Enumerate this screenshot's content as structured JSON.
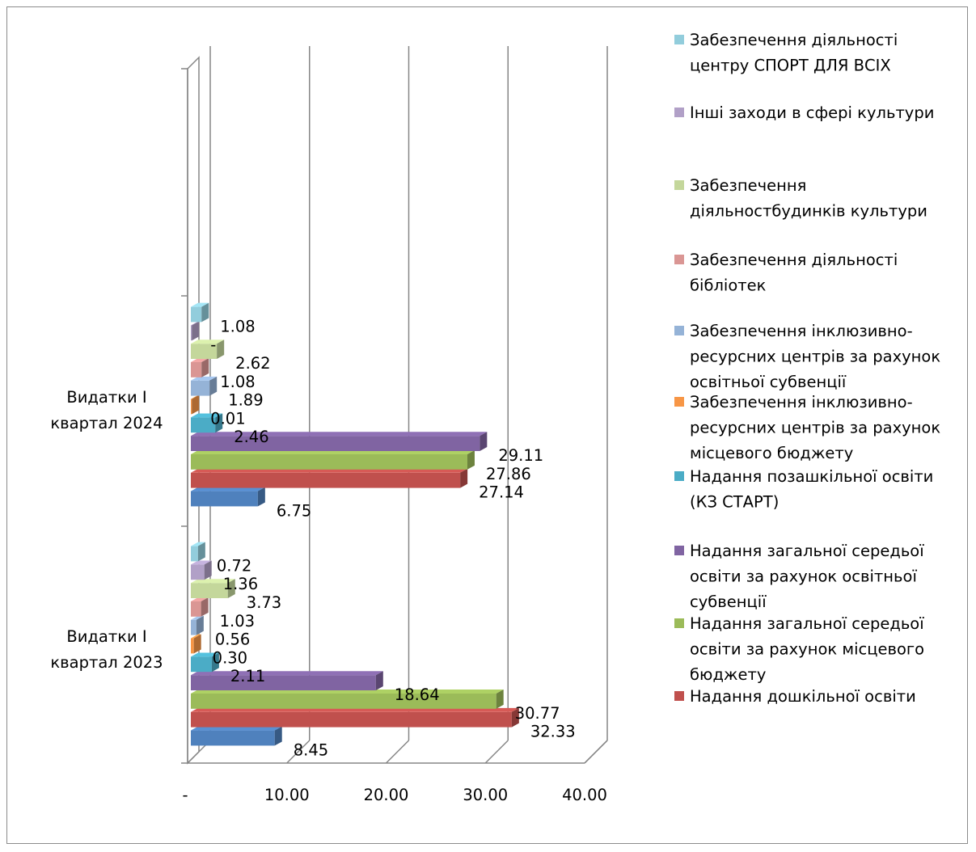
{
  "chart_data": {
    "type": "bar",
    "orientation": "horizontal",
    "style": "3d",
    "categories": [
      "Видатки І квартал 2023",
      "Видатки І квартал 2024"
    ],
    "category_lines": [
      [
        "Видатки І",
        "квартал 2023"
      ],
      [
        "Видатки І",
        "квартал 2024"
      ]
    ],
    "xlim": [
      0,
      40
    ],
    "x_ticks": [
      0,
      10,
      20,
      30,
      40
    ],
    "x_tick_labels": [
      "-",
      "10.00",
      "20.00",
      "30.00",
      "40.00"
    ],
    "grid": true,
    "legend_position": "right",
    "series": [
      {
        "name": "",
        "color": "#4f81bd",
        "values": [
          8.45,
          6.75
        ],
        "labels": [
          "8.45",
          "6.75"
        ]
      },
      {
        "name": "Надання дошкільної освіти",
        "legend_lines": [
          "Надання дошкільної освіти"
        ],
        "color": "#c0504d",
        "values": [
          32.33,
          27.14
        ],
        "labels": [
          "32.33",
          "27.14"
        ]
      },
      {
        "name": "Надання загальної середьої освіти за рахунок місцевого бюджету",
        "legend_lines": [
          "Надання загальної середьої",
          "освіти за рахунок місцевого",
          "бюджету"
        ],
        "color": "#9bbb59",
        "values": [
          30.77,
          27.86
        ],
        "labels": [
          "30.77",
          "27.86"
        ]
      },
      {
        "name": "Надання загальної середьої освіти за рахунок освітньої субвенції",
        "legend_lines": [
          "Надання загальної середьої",
          "освіти за рахунок освітньої",
          "субвенції"
        ],
        "color": "#8064a2",
        "values": [
          18.64,
          29.11
        ],
        "labels": [
          "18.64",
          "29.11"
        ]
      },
      {
        "name": "Надання позашкільної освіти (КЗ СТАРТ)",
        "legend_lines": [
          "Надання позашкільної освіти",
          "(КЗ СТАРТ)"
        ],
        "color": "#4bacc6",
        "values": [
          2.11,
          2.46
        ],
        "labels": [
          "2.11",
          "2.46"
        ]
      },
      {
        "name": "Забезпечення інклюзивно-ресурсних центрів за рахунок місцевого бюджету",
        "legend_lines": [
          "Забезпечення інклюзивно-",
          "ресурсних центрів за рахунок",
          "місцевого бюджету"
        ],
        "color": "#f79646",
        "values": [
          0.3,
          0.01
        ],
        "labels": [
          "0.30",
          "0.01"
        ]
      },
      {
        "name": "Забезпечення інклюзивно-ресурсних центрів за рахунок освітньої субвенції",
        "legend_lines": [
          "Забезпечення інклюзивно-",
          "ресурсних центрів за рахунок",
          "освітньої субвенції"
        ],
        "color": "#95b3d7",
        "values": [
          0.56,
          1.89
        ],
        "labels": [
          "0.56",
          "1.89"
        ]
      },
      {
        "name": "Забезпечення діяльності бібліотек",
        "legend_lines": [
          "Забезпечення діяльності",
          "бібліотек"
        ],
        "color": "#da9694",
        "values": [
          1.03,
          1.08
        ],
        "labels": [
          "1.03",
          "1.08"
        ]
      },
      {
        "name": "Забезпечення діяльностбудинків культури",
        "legend_lines": [
          "Забезпечення",
          "діяльностбудинків культури"
        ],
        "color": "#c4d79b",
        "values": [
          3.73,
          2.62
        ],
        "labels": [
          "3.73",
          "2.62"
        ]
      },
      {
        "name": "Інші заходи в сфері культури",
        "legend_lines": [
          "Інші заходи в сфері культури"
        ],
        "color": "#b1a0c7",
        "values": [
          1.36,
          0
        ],
        "labels": [
          "1.36",
          "-"
        ]
      },
      {
        "name": "Забезпечення діяльності центру СПОРТ ДЛЯ ВСІХ",
        "legend_lines": [
          "Забезпечення діяльності",
          "центру СПОРТ ДЛЯ ВСІХ"
        ],
        "color": "#92cddc",
        "values": [
          0.72,
          1.08
        ],
        "labels": [
          "0.72",
          "1.08"
        ]
      }
    ]
  }
}
